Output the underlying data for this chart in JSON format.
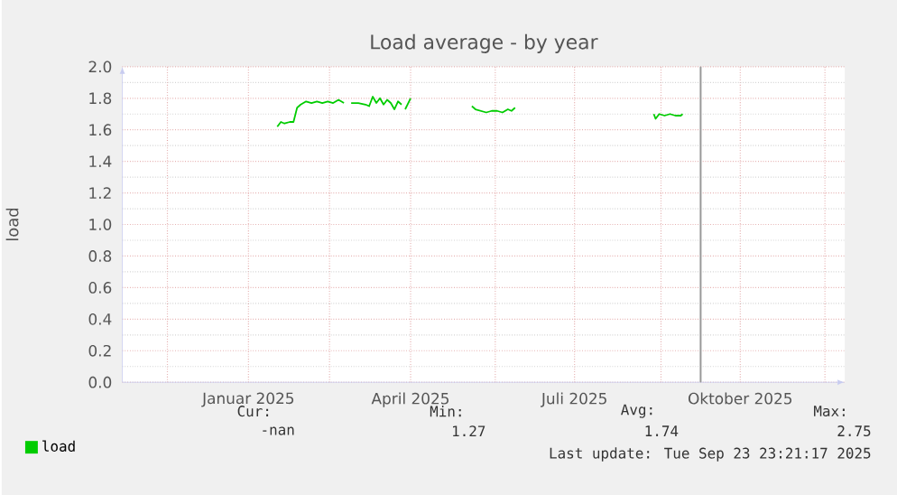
{
  "chart_data": {
    "type": "line",
    "title": "Load average - by year",
    "ylabel": "load",
    "x": [
      "2025-01-31",
      "2025-02-02",
      "2025-02-04",
      "2025-02-07",
      "2025-02-09",
      "2025-02-11",
      "2025-02-13",
      "2025-02-16",
      "2025-02-19",
      "2025-02-22",
      "2025-02-25",
      "2025-02-28",
      "2025-03-03",
      "2025-03-06",
      "2025-03-09",
      "2025-03-11",
      "2025-03-13",
      "2025-03-17",
      "2025-03-21",
      "2025-03-23",
      "2025-03-25",
      "2025-03-27",
      "2025-03-29",
      "2025-03-31",
      "2025-04-02",
      "2025-04-04",
      "2025-04-06",
      "2025-04-08",
      "2025-04-10",
      "2025-04-11",
      "2025-04-12",
      "2025-04-15",
      "2025-04-28",
      "2025-05-19",
      "2025-05-21",
      "2025-05-24",
      "2025-05-27",
      "2025-05-30",
      "2025-06-02",
      "2025-06-05",
      "2025-06-08",
      "2025-06-10",
      "2025-06-12",
      "2025-06-27",
      "2025-08-28",
      "2025-08-29",
      "2025-08-31",
      "2025-09-03",
      "2025-09-06",
      "2025-09-09",
      "2025-09-12",
      "2025-09-13"
    ],
    "series": [
      {
        "name": "load",
        "color": "#00cc00",
        "values": [
          1.62,
          1.65,
          1.64,
          1.65,
          1.65,
          1.74,
          1.76,
          1.78,
          1.77,
          1.78,
          1.77,
          1.78,
          1.77,
          1.79,
          1.77,
          null,
          1.77,
          1.77,
          1.76,
          1.75,
          1.81,
          1.77,
          1.8,
          1.76,
          1.79,
          1.77,
          1.73,
          1.78,
          1.76,
          null,
          1.73,
          1.8,
          null,
          1.75,
          1.73,
          1.72,
          1.71,
          1.72,
          1.72,
          1.71,
          1.73,
          1.72,
          1.74,
          null,
          1.7,
          1.67,
          1.7,
          1.69,
          1.7,
          1.69,
          1.69,
          1.7
        ]
      }
    ],
    "xlim": [
      "2024-11-06",
      "2025-12-12"
    ],
    "xticks": [
      {
        "value": "2024-12-01",
        "label": null
      },
      {
        "value": "2025-01-15",
        "label": "Januar 2025"
      },
      {
        "value": "2025-03-01",
        "label": null
      },
      {
        "value": "2025-04-15",
        "label": "April 2025"
      },
      {
        "value": "2025-06-01",
        "label": null
      },
      {
        "value": "2025-07-15",
        "label": "Juli 2025"
      },
      {
        "value": "2025-09-01",
        "label": null
      },
      {
        "value": "2025-10-15",
        "label": "Oktober 2025"
      },
      {
        "value": "2025-12-01",
        "label": null
      }
    ],
    "ylim": [
      0,
      2
    ],
    "yticks": [
      {
        "value": 0,
        "label": "0.0"
      },
      {
        "value": 0.2,
        "label": "0.2"
      },
      {
        "value": 0.4,
        "label": "0.4"
      },
      {
        "value": 0.6,
        "label": "0.6"
      },
      {
        "value": 0.8,
        "label": "0.8"
      },
      {
        "value": 1,
        "label": "1.0"
      },
      {
        "value": 1.2,
        "label": "1.2"
      },
      {
        "value": 1.4,
        "label": "1.4"
      },
      {
        "value": 1.6,
        "label": "1.6"
      },
      {
        "value": 1.8,
        "label": "1.8"
      },
      {
        "value": 2,
        "label": "2.0"
      }
    ],
    "grid": true,
    "legend": "bottom left",
    "marker": "none",
    "line_style": "solid",
    "ref_lines": [
      {
        "axis": "x",
        "value": "2025-09-23",
        "color": "#999999"
      }
    ],
    "annotations": [
      "Cur:",
      "Min:",
      "Avg:",
      "Max:",
      "-nan",
      "1.27",
      "1.74",
      "2.75",
      "Last update: Tue Sep 23 23:21:17 2025"
    ]
  }
}
